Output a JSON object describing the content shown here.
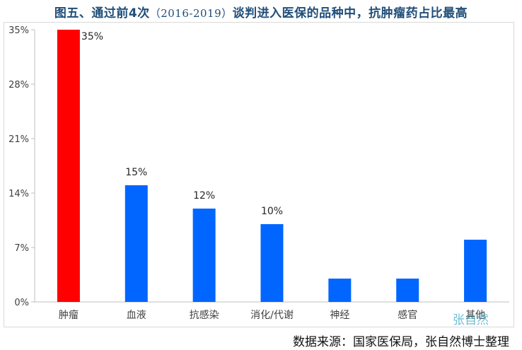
{
  "header": {
    "title_prefix": "图五、通过前4次",
    "title_years": "（2016-2019）",
    "title_suffix": "谈判进入医保的品种中，抗肿瘤药占比最高"
  },
  "chart_data": {
    "type": "bar",
    "title": "图五、通过前4次（2016-2019）谈判进入医保的品种中，抗肿瘤药占比最高",
    "xlabel": "",
    "ylabel": "",
    "categories": [
      "肿瘤",
      "血液",
      "抗感染",
      "消化/代谢",
      "神经",
      "感官",
      "其他"
    ],
    "values": [
      35,
      15,
      12,
      10,
      3,
      3,
      8
    ],
    "data_labels": [
      "35%",
      "15%",
      "12%",
      "10%",
      "",
      "",
      ""
    ],
    "colors": [
      "#ff0000",
      "#0066ff",
      "#0066ff",
      "#0066ff",
      "#0066ff",
      "#0066ff",
      "#0066ff"
    ],
    "ylim": [
      0,
      35
    ],
    "yticks": [
      0,
      7,
      14,
      21,
      28,
      35
    ],
    "ytick_labels": [
      "0%",
      "7%",
      "14%",
      "21%",
      "28%",
      "35%"
    ],
    "grid": false,
    "legend": "none"
  },
  "watermark": "张自然",
  "source": "数据来源：国家医保局，张自然博士整理"
}
